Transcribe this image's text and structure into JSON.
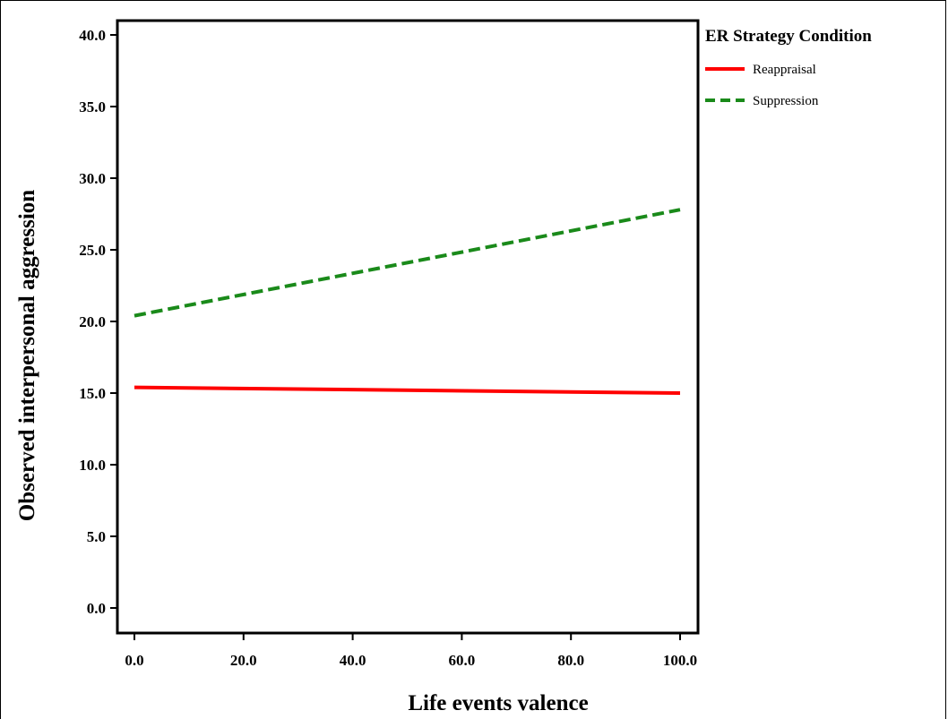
{
  "chart_data": {
    "type": "line",
    "xlabel": "Life events valence",
    "ylabel": "Observed interpersonal aggression",
    "xlim": [
      0,
      100
    ],
    "ylim": [
      0,
      40
    ],
    "x_ticks": [
      "0.0",
      "20.0",
      "40.0",
      "60.0",
      "80.0",
      "100.0"
    ],
    "y_ticks": [
      "0.0",
      "5.0",
      "10.0",
      "15.0",
      "20.0",
      "25.0",
      "30.0",
      "35.0",
      "40.0"
    ],
    "grid": false,
    "legend": {
      "title": "ER Strategy Condition",
      "placement": "top-right outside"
    },
    "series": [
      {
        "name": "Reappraisal",
        "color": "#ff0000",
        "style": "solid",
        "x": [
          0,
          100
        ],
        "y": [
          15.4,
          15.0
        ]
      },
      {
        "name": "Suppression",
        "color": "#1a8a1a",
        "style": "dashed",
        "x": [
          0,
          100
        ],
        "y": [
          20.4,
          27.8
        ]
      }
    ]
  }
}
